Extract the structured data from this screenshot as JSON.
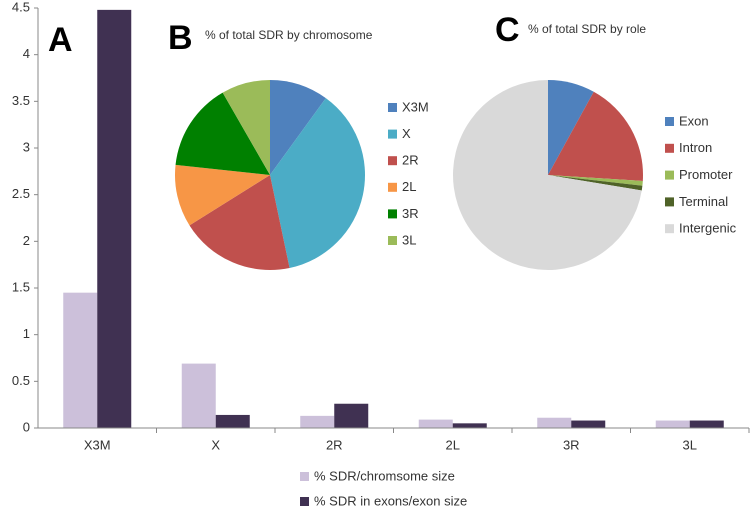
{
  "chart_data": [
    {
      "type": "bar",
      "label": "A",
      "categories": [
        "X3M",
        "X",
        "2R",
        "2L",
        "3R",
        "3L"
      ],
      "series": [
        {
          "name": "% SDR/chromsome size",
          "color": "#ccc0da",
          "values": [
            1.45,
            0.69,
            0.13,
            0.09,
            0.11,
            0.08
          ]
        },
        {
          "name": "% SDR in exons/exon size",
          "color": "#403152",
          "values": [
            4.48,
            0.14,
            0.26,
            0.05,
            0.08,
            0.08
          ]
        }
      ],
      "ylim": [
        0,
        4.5
      ],
      "yticks": [
        0,
        0.5,
        1,
        1.5,
        2,
        2.5,
        3,
        3.5,
        4,
        4.5
      ],
      "grid": false,
      "legend": "bottom"
    },
    {
      "type": "pie",
      "label": "B",
      "title": "% of total SDR by chromosome",
      "categories": [
        "X3M",
        "X",
        "2R",
        "2L",
        "3R",
        "3L"
      ],
      "values": [
        10,
        36.7,
        19.4,
        10.6,
        15,
        8.3
      ],
      "colors": [
        "#4f81bd",
        "#4bacc6",
        "#c0504d",
        "#f79646",
        "#008000",
        "#9bbb59"
      ],
      "legend": "right"
    },
    {
      "type": "pie",
      "label": "C",
      "title": "% of total SDR by role",
      "categories": [
        "Exon",
        "Intron",
        "Promoter",
        "Terminal",
        "Intergenic"
      ],
      "values": [
        8,
        18,
        0.8,
        0.8,
        72.4
      ],
      "colors": [
        "#4f81bd",
        "#c0504d",
        "#9bbb59",
        "#4f6228",
        "#d9d9d9"
      ],
      "legend": "right"
    }
  ]
}
